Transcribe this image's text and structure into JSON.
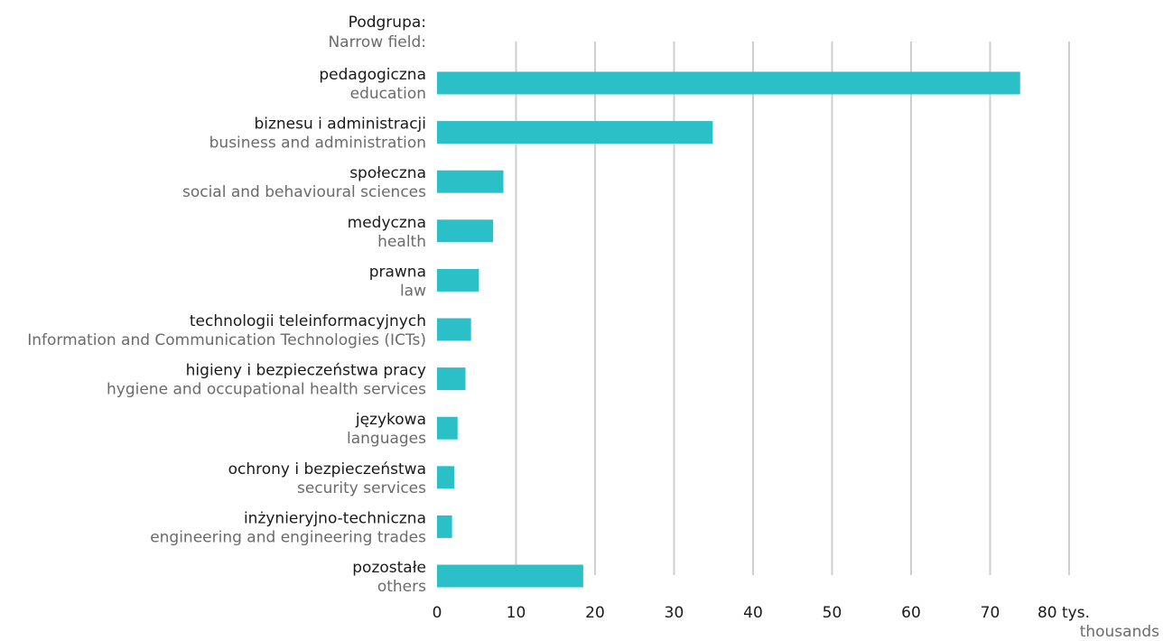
{
  "chart_data": {
    "type": "bar",
    "orientation": "horizontal",
    "header": {
      "pl": "Podgrupa:",
      "en": "Narrow field:"
    },
    "categories": [
      {
        "pl": "pedagogiczna",
        "en": "education"
      },
      {
        "pl": "biznesu i administracji",
        "en": "business and administration"
      },
      {
        "pl": "społeczna",
        "en": "social and behavioural sciences"
      },
      {
        "pl": "medyczna",
        "en": "health"
      },
      {
        "pl": "prawna",
        "en": "law"
      },
      {
        "pl": "technologii teleinformacyjnych",
        "en": "Information and Communication Technologies (ICTs)"
      },
      {
        "pl": "higieny i bezpieczeństwa pracy",
        "en": "hygiene and occupational health services"
      },
      {
        "pl": "językowa",
        "en": "languages"
      },
      {
        "pl": "ochrony i bezpieczeństwa",
        "en": "security services"
      },
      {
        "pl": "inżynieryjno-techniczna",
        "en": "engineering and engineering trades"
      },
      {
        "pl": "pozostałe",
        "en": "others"
      }
    ],
    "values": [
      73.8,
      34.9,
      8.4,
      7.1,
      5.3,
      4.3,
      3.6,
      2.6,
      2.2,
      1.9,
      18.5
    ],
    "xlim": [
      0,
      80
    ],
    "xticks": [
      "0",
      "10",
      "20",
      "30",
      "40",
      "50",
      "60",
      "70",
      "80 tys."
    ],
    "unit": {
      "pl": "80 tys.",
      "en": "thousands"
    },
    "grid": true,
    "bar_color": "#2bbfc7",
    "grid_color": "#cfcfcf"
  }
}
